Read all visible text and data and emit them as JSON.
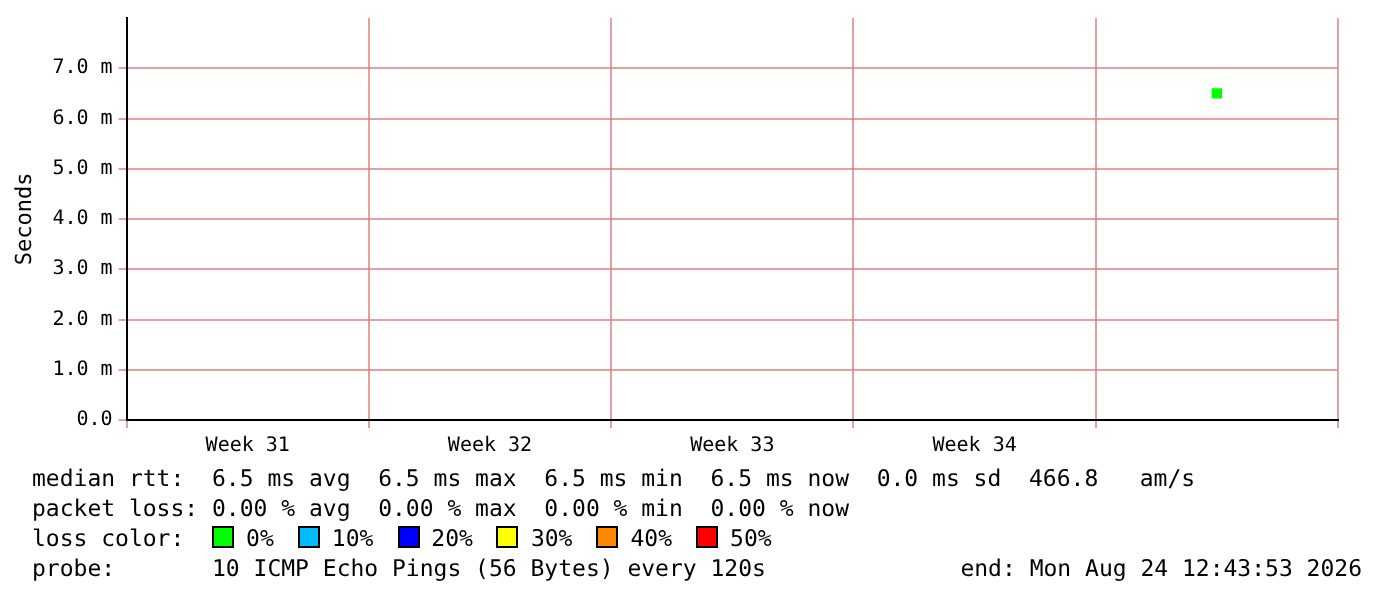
{
  "chart_data": {
    "type": "scatter",
    "ylabel": "Seconds",
    "legend_title": "loss color:",
    "legend": "bottom",
    "marker": "square",
    "grid": true,
    "categories": [
      "Week 31",
      "Week 32",
      "Week 33",
      "Week 34",
      null
    ],
    "ylim": [
      0,
      8
    ],
    "yticks": [
      {
        "value": 0,
        "label": "0.0"
      },
      {
        "value": 1,
        "label": "1.0 m"
      },
      {
        "value": 2,
        "label": "2.0 m"
      },
      {
        "value": 3,
        "label": "3.0 m"
      },
      {
        "value": 4,
        "label": "4.0 m"
      },
      {
        "value": 5,
        "label": "5.0 m"
      },
      {
        "value": 6,
        "label": "6.0 m"
      },
      {
        "value": 7,
        "label": "7.0 m"
      }
    ],
    "series": [
      {
        "name": "0%",
        "color": "#00ff00",
        "values": [
          null,
          null,
          null,
          null,
          6.5
        ]
      },
      {
        "name": "10%",
        "color": "#00bbff",
        "values": [
          null,
          null,
          null,
          null,
          null
        ]
      },
      {
        "name": "20%",
        "color": "#0000ff",
        "values": [
          null,
          null,
          null,
          null,
          null
        ]
      },
      {
        "name": "30%",
        "color": "#ffff00",
        "values": [
          null,
          null,
          null,
          null,
          null
        ]
      },
      {
        "name": "40%",
        "color": "#ff8800",
        "values": [
          null,
          null,
          null,
          null,
          null
        ]
      },
      {
        "name": "50%",
        "color": "#ff0000",
        "values": [
          null,
          null,
          null,
          null,
          null
        ]
      }
    ],
    "annotations": [
      "median rtt:  6.5 ms avg  6.5 ms max  6.5 ms min  6.5 ms now  0.0 ms sd  466.8   am/s",
      "packet loss: 0.00 % avg  0.00 % max  0.00 % min  0.00 % now",
      "probe:       10 ICMP Echo Pings (56 Bytes) every 120s",
      "end: Mon Aug 24 12:43:53 2026"
    ]
  }
}
